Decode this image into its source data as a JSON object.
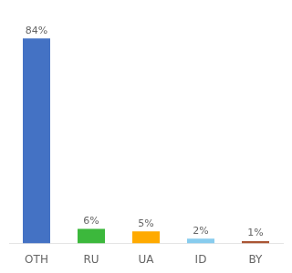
{
  "chart_data": {
    "type": "bar",
    "categories": [
      "OTH",
      "RU",
      "UA",
      "ID",
      "BY"
    ],
    "values": [
      84,
      6,
      5,
      2,
      1
    ],
    "value_labels": [
      "84%",
      "6%",
      "5%",
      "2%",
      "1%"
    ],
    "colors": [
      "#4472c4",
      "#3cb83c",
      "#ffaa00",
      "#88ccee",
      "#aa5533"
    ],
    "ylim": [
      0,
      96
    ],
    "grid": false,
    "data_labels": true,
    "tick_labels": "x"
  }
}
